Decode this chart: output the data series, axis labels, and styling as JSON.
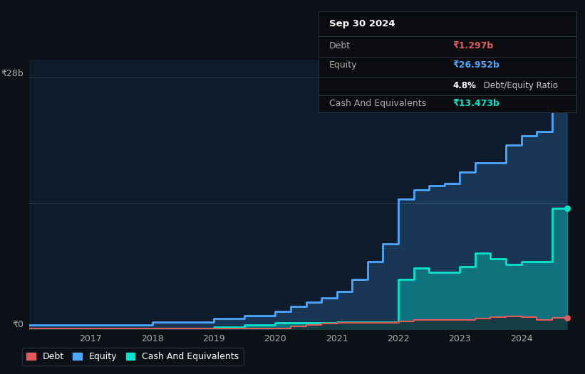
{
  "bg_color": "#0d1117",
  "plot_bg_color": "#0d1b2a",
  "x_quarters": [
    2016.0,
    2016.25,
    2016.5,
    2016.75,
    2017.0,
    2017.25,
    2017.5,
    2017.75,
    2018.0,
    2018.25,
    2018.5,
    2018.75,
    2019.0,
    2019.25,
    2019.5,
    2019.75,
    2020.0,
    2020.25,
    2020.5,
    2020.75,
    2021.0,
    2021.25,
    2021.5,
    2021.75,
    2022.0,
    2022.25,
    2022.5,
    2022.75,
    2023.0,
    2023.25,
    2023.5,
    2023.75,
    2024.0,
    2024.25,
    2024.5,
    2024.75
  ],
  "equity": [
    0.5,
    0.5,
    0.5,
    0.5,
    0.5,
    0.5,
    0.5,
    0.5,
    0.8,
    0.8,
    0.8,
    0.8,
    1.2,
    1.2,
    1.5,
    1.5,
    2.0,
    2.5,
    3.0,
    3.5,
    4.2,
    5.5,
    7.5,
    9.5,
    14.5,
    15.5,
    16.0,
    16.2,
    17.5,
    18.5,
    18.5,
    20.5,
    21.5,
    22.0,
    26.952,
    26.952
  ],
  "cash": [
    0.05,
    0.05,
    0.05,
    0.05,
    0.05,
    0.05,
    0.05,
    0.05,
    0.05,
    0.05,
    0.05,
    0.05,
    0.2,
    0.2,
    0.5,
    0.5,
    0.7,
    0.7,
    0.7,
    0.7,
    0.8,
    0.8,
    0.8,
    0.8,
    5.5,
    6.8,
    6.3,
    6.3,
    7.0,
    8.5,
    7.8,
    7.2,
    7.5,
    7.5,
    13.473,
    13.473
  ],
  "debt": [
    0.05,
    0.05,
    0.05,
    0.05,
    0.05,
    0.05,
    0.05,
    0.05,
    0.05,
    0.05,
    0.05,
    0.05,
    0.05,
    0.05,
    0.05,
    0.05,
    0.1,
    0.3,
    0.5,
    0.6,
    0.7,
    0.7,
    0.7,
    0.7,
    0.9,
    1.0,
    1.0,
    1.0,
    1.0,
    1.2,
    1.3,
    1.4,
    1.3,
    1.0,
    1.297,
    1.297
  ],
  "debt_color": "#e05c5c",
  "equity_color": "#4da6ff",
  "cash_color": "#00e5cc",
  "ylim_max": 30,
  "grid_lines": [
    28,
    14
  ],
  "y_label_28": "₹28b",
  "y_label_0": "₹0",
  "x_ticks": [
    2017,
    2018,
    2019,
    2020,
    2021,
    2022,
    2023,
    2024
  ],
  "tooltip_title": "Sep 30 2024",
  "tooltip_debt_label": "Debt",
  "tooltip_debt_value": "₹1.297b",
  "tooltip_equity_label": "Equity",
  "tooltip_equity_value": "₹26.952b",
  "tooltip_ratio_bold": "4.8%",
  "tooltip_ratio_normal": " Debt/Equity Ratio",
  "tooltip_cash_label": "Cash And Equivalents",
  "tooltip_cash_value": "₹13.473b",
  "legend_labels": [
    "Debt",
    "Equity",
    "Cash And Equivalents"
  ]
}
